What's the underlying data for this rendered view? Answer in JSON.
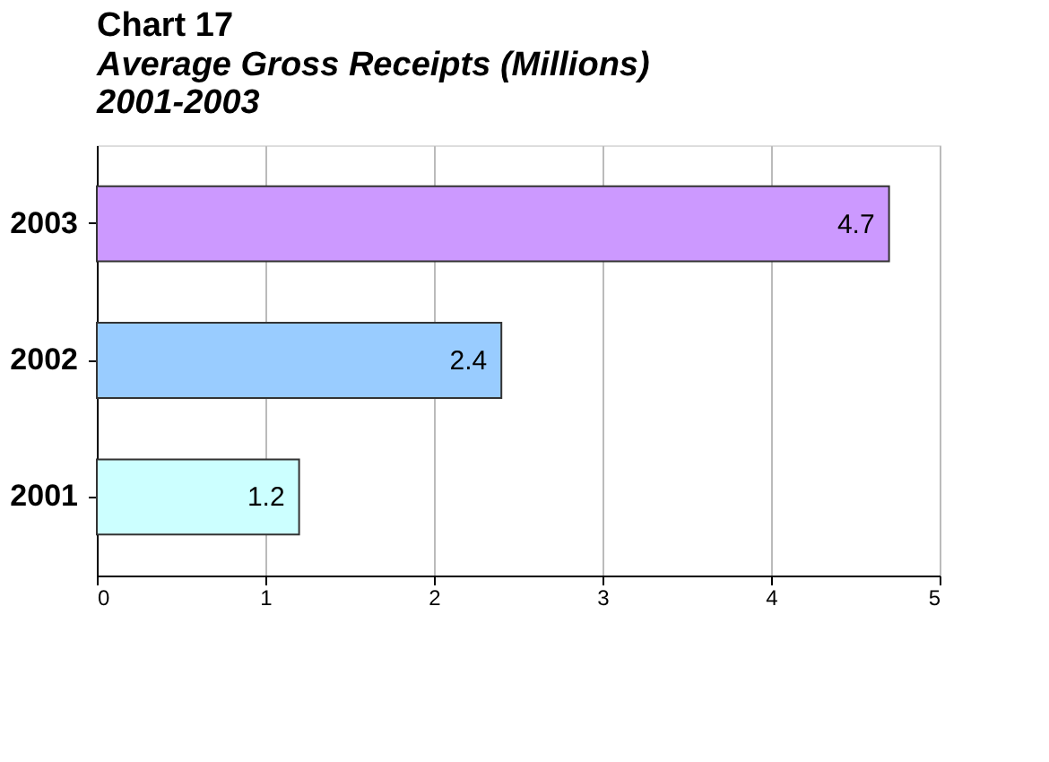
{
  "chart_data": {
    "type": "bar",
    "orientation": "horizontal",
    "title": "Chart 17",
    "subtitle": "Average Gross Receipts (Millions)\n2001-2003",
    "categories": [
      "2003",
      "2002",
      "2001"
    ],
    "values": [
      4.7,
      2.4,
      1.2
    ],
    "colors": [
      "#cc99ff",
      "#99ccff",
      "#ccffff"
    ],
    "xlim": [
      0,
      5
    ],
    "xticks": [
      0,
      1,
      2,
      3,
      4,
      5
    ],
    "grid": "x",
    "data_labels": true
  }
}
